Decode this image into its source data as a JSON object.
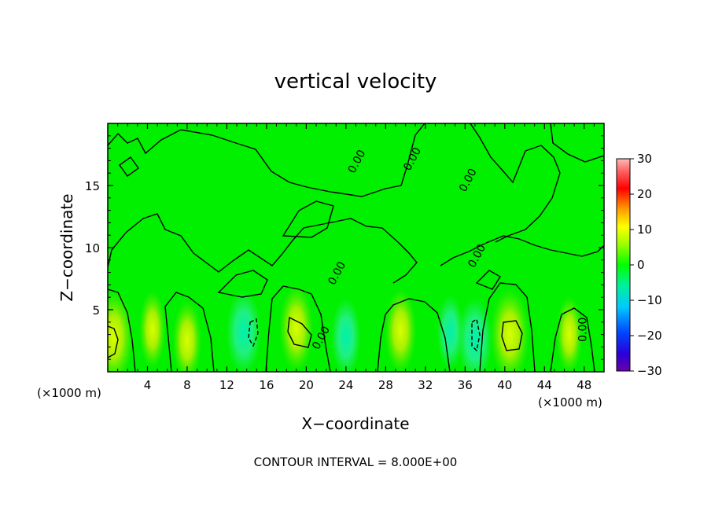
{
  "chart_data": {
    "type": "heatmap",
    "title": "vertical velocity",
    "xlabel": "X−coordinate",
    "ylabel": "Z−coordinate",
    "x_unit_left": "(×1000 m)",
    "x_unit_right": "(×1000 m)",
    "footer": "CONTOUR INTERVAL = 8.000E+00",
    "xlim": [
      0,
      50
    ],
    "ylim": [
      0,
      20
    ],
    "x_ticks": [
      4,
      8,
      12,
      16,
      20,
      24,
      28,
      32,
      36,
      40,
      44,
      48
    ],
    "x_tick_labels": [
      "4",
      "8",
      "12",
      "16",
      "20",
      "24",
      "28",
      "32",
      "36",
      "40",
      "44",
      "48"
    ],
    "y_ticks": [
      5,
      10,
      15
    ],
    "y_tick_labels": [
      "5",
      "10",
      "15"
    ],
    "colorbar": {
      "min": -30,
      "max": 30,
      "ticks": [
        30,
        20,
        10,
        0,
        -10,
        -20,
        -30
      ],
      "tick_labels": [
        "30",
        "20",
        "10",
        "0",
        "−10",
        "−20",
        "−30"
      ]
    },
    "contour_labels": [
      {
        "text": "0.00",
        "x": 25.4,
        "y": 16.8
      },
      {
        "text": "0.00",
        "x": 31.0,
        "y": 17.0
      },
      {
        "text": "0.00",
        "x": 36.6,
        "y": 15.3
      },
      {
        "text": "0.00",
        "x": 23.4,
        "y": 7.8
      },
      {
        "text": "0.00",
        "x": 21.8,
        "y": 2.6
      },
      {
        "text": "0.00",
        "x": 37.5,
        "y": 9.2
      },
      {
        "text": "0.00",
        "x": 48.2,
        "y": 3.4
      }
    ],
    "updraft_cells": [
      {
        "x": 0.6,
        "y": 2.8,
        "value": 10
      },
      {
        "x": 4.5,
        "y": 3.4,
        "value": 5
      },
      {
        "x": 8.0,
        "y": 2.5,
        "value": 6
      },
      {
        "x": 19.0,
        "y": 3.5,
        "value": 8
      },
      {
        "x": 29.5,
        "y": 3.3,
        "value": 7
      },
      {
        "x": 40.5,
        "y": 3.0,
        "value": 10
      },
      {
        "x": 46.5,
        "y": 3.0,
        "value": 5
      }
    ],
    "downdraft_cells": [
      {
        "x": 13.7,
        "y": 3.2,
        "value": -8
      },
      {
        "x": 24.0,
        "y": 2.8,
        "value": -6
      },
      {
        "x": 37.0,
        "y": 2.6,
        "value": -8
      },
      {
        "x": 34.5,
        "y": 3.2,
        "value": -5
      }
    ]
  }
}
